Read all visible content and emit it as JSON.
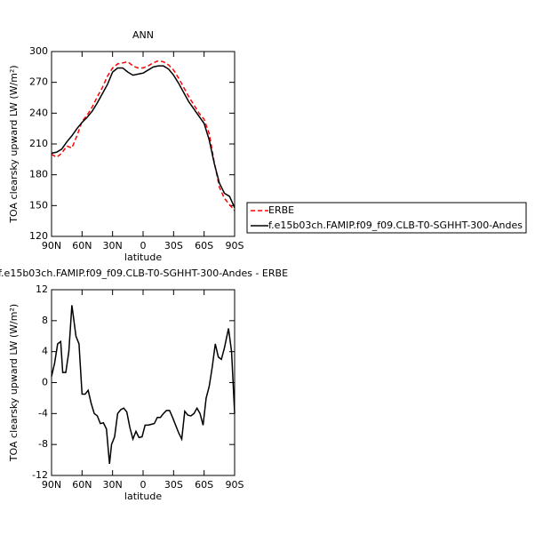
{
  "chart_data": [
    {
      "type": "line",
      "title": "ANN",
      "xlabel": "latitude",
      "ylabel": "TOA clearsky upward LW (W/m²)",
      "x": [
        90,
        85,
        80,
        75,
        70,
        65,
        60,
        55,
        50,
        45,
        40,
        35,
        30,
        25,
        20,
        15,
        10,
        5,
        0,
        -5,
        -10,
        -15,
        -20,
        -25,
        -30,
        -35,
        -40,
        -45,
        -50,
        -55,
        -60,
        -65,
        -70,
        -75,
        -80,
        -85,
        -90
      ],
      "series": [
        {
          "name": "ERBE",
          "color": "#ff0000",
          "linestyle": "dashed",
          "values": [
            200,
            197,
            201,
            208,
            206,
            218,
            232,
            238,
            246,
            256,
            265,
            276,
            284,
            288,
            289,
            290,
            286,
            284,
            284,
            286,
            289,
            291,
            290,
            287,
            282,
            274,
            265,
            256,
            248,
            240,
            234,
            220,
            192,
            168,
            157,
            151,
            145
          ]
        },
        {
          "name": "f.e15b03ch.FAMIP.f09_f09.CLB-T0-SGHHT-300-Andes",
          "color": "#000000",
          "linestyle": "solid",
          "values": [
            201,
            202,
            205,
            212,
            218,
            225,
            231,
            236,
            242,
            250,
            259,
            268,
            280,
            284,
            284,
            280,
            277,
            278,
            279,
            282,
            285,
            286,
            286,
            283,
            277,
            269,
            260,
            251,
            244,
            237,
            230,
            214,
            191,
            172,
            162,
            159,
            148
          ]
        }
      ],
      "xlim": [
        90,
        -90
      ],
      "xticks": [
        {
          "value": 90,
          "label": "90N"
        },
        {
          "value": 60,
          "label": "60N"
        },
        {
          "value": 30,
          "label": "30N"
        },
        0,
        {
          "value": -30,
          "label": "30S"
        },
        {
          "value": -60,
          "label": "60S"
        },
        {
          "value": -90,
          "label": "90S"
        }
      ],
      "ylim": [
        120,
        300
      ],
      "yticks": [
        120,
        150,
        180,
        210,
        240,
        270,
        300
      ],
      "legend": "right"
    },
    {
      "type": "line",
      "title": "f.e15b03ch.FAMIP.f09_f09.CLB-T0-SGHHT-300-Andes - ERBE",
      "xlabel": "latitude",
      "ylabel": "TOA clearsky upward LW (W/m²)",
      "x": [
        90,
        87,
        84,
        81,
        79,
        76,
        73,
        70,
        66,
        63,
        60,
        57,
        54,
        51,
        48,
        45,
        42,
        39,
        36,
        33,
        31,
        28,
        25,
        22,
        19,
        16,
        13,
        10,
        7,
        4,
        1,
        -2,
        -5,
        -8,
        -11,
        -14,
        -17,
        -20,
        -23,
        -26,
        -29,
        -32,
        -35,
        -38,
        -41,
        -44,
        -47,
        -50,
        -53,
        -56,
        -59,
        -62,
        -65,
        -68,
        -71,
        -74,
        -77,
        -80,
        -84,
        -87,
        -90
      ],
      "series": [
        {
          "color": "#000000",
          "linestyle": "solid",
          "values": [
            0.8,
            2.5,
            5,
            5.3,
            1.3,
            1.3,
            4,
            10,
            6,
            5,
            -1.5,
            -1.5,
            -1,
            -2.7,
            -4,
            -4.3,
            -5.3,
            -5.2,
            -6,
            -10.5,
            -8,
            -7,
            -4,
            -3.5,
            -3.3,
            -3.8,
            -5.8,
            -7.3,
            -6.3,
            -7.1,
            -7,
            -5.5,
            -5.5,
            -5.4,
            -5.3,
            -4.5,
            -4.5,
            -4,
            -3.6,
            -3.6,
            -4.5,
            -5.5,
            -6.5,
            -7.3,
            -3.7,
            -4.2,
            -4.3,
            -4,
            -3.3,
            -4,
            -5.5,
            -2,
            -0.5,
            2,
            5,
            3.3,
            3,
            4.5,
            7,
            4,
            -4
          ]
        }
      ],
      "xlim": [
        90,
        -90
      ],
      "xticks": [
        {
          "value": 90,
          "label": "90N"
        },
        {
          "value": 60,
          "label": "60N"
        },
        {
          "value": 30,
          "label": "30N"
        },
        0,
        {
          "value": -30,
          "label": "30S"
        },
        {
          "value": -60,
          "label": "60S"
        },
        {
          "value": -90,
          "label": "90S"
        }
      ],
      "ylim": [
        -12,
        12
      ],
      "yticks": [
        -12,
        -8,
        -4,
        0,
        4,
        8,
        12
      ]
    }
  ]
}
